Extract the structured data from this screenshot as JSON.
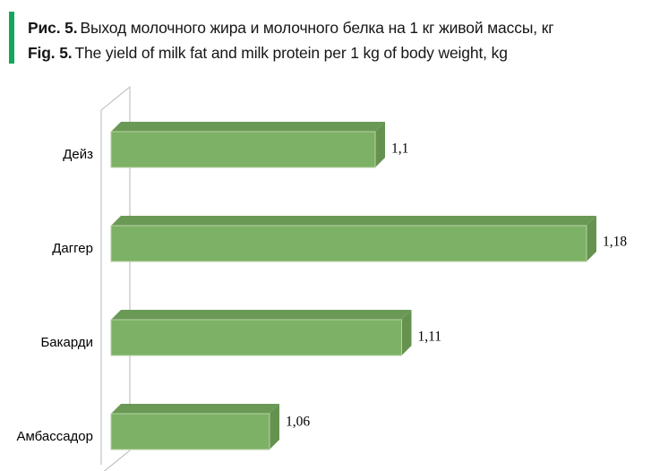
{
  "figure": {
    "caption_ru_label": "Рис. 5.",
    "caption_ru_text": "Выход молочного жира и молочного белка на 1 кг живой массы, кг",
    "caption_en_label": "Fig. 5.",
    "caption_en_text": "The yield of milk fat and milk protein per 1 kg of body weight, kg",
    "accent_color": "#12a85c"
  },
  "chart_data": {
    "type": "bar",
    "orientation": "horizontal",
    "style": "3d",
    "title": "",
    "xlabel": "",
    "ylabel": "",
    "categories": [
      "Дейз",
      "Даггер",
      "Бакарди",
      "Амбассадор"
    ],
    "values": [
      1.1,
      1.18,
      1.11,
      1.06
    ],
    "data_labels": [
      "1,1",
      "1,18",
      "1,11",
      "1,06"
    ],
    "xlim": [
      1.0,
      1.2
    ],
    "grid": false,
    "legend": false,
    "bar_color": "#7db166",
    "bar_top_color": "#6a9955",
    "bar_side_color": "#66924f",
    "bar_edge_color": "#b7d2a6",
    "wall_line_color": "#bdbdbd",
    "label_color": "#000000"
  }
}
